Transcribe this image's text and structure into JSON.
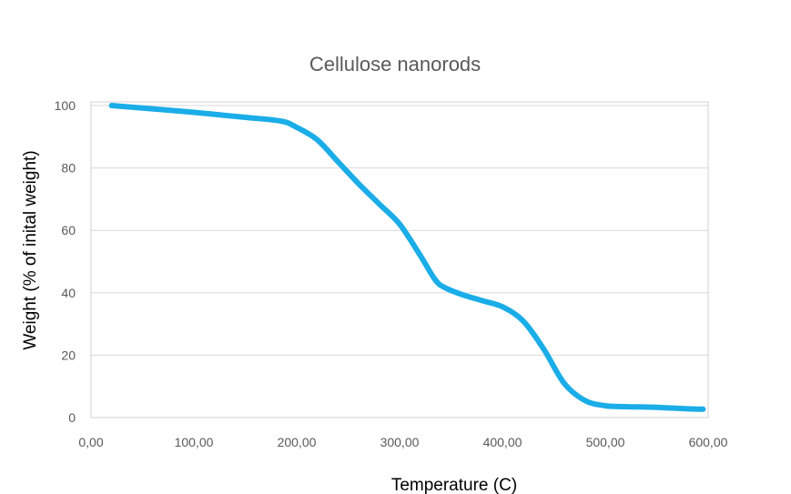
{
  "chart_data": {
    "type": "line",
    "title": "Cellulose nanorods",
    "xlabel": "Temperature (C)",
    "ylabel": "Weight (% of inital weight)",
    "xlim": [
      0,
      600
    ],
    "ylim": [
      0,
      100
    ],
    "x_ticks": [
      0,
      100,
      200,
      300,
      400,
      500,
      600
    ],
    "x_tick_labels": [
      "0,00",
      "100,00",
      "200,00",
      "300,00",
      "400,00",
      "500,00",
      "600,00"
    ],
    "y_ticks": [
      0,
      20,
      40,
      60,
      80,
      100
    ],
    "y_tick_labels": [
      "0",
      "20",
      "40",
      "60",
      "80",
      "100"
    ],
    "grid": "horizontal",
    "legend": "none",
    "line_color": "#1AADE8",
    "series": [
      {
        "x": [
          20,
          50,
          100,
          150,
          185,
          200,
          220,
          240,
          260,
          280,
          300,
          320,
          335,
          345,
          360,
          380,
          400,
          420,
          440,
          460,
          480,
          500,
          520,
          550,
          580,
          595
        ],
        "y": [
          100,
          99.2,
          97.8,
          96.2,
          95,
          93,
          89,
          82,
          75,
          68.5,
          62,
          52,
          44,
          41.5,
          39.5,
          37.5,
          35.5,
          31,
          22,
          11,
          5.5,
          3.8,
          3.5,
          3.3,
          2.8,
          2.7
        ]
      }
    ]
  }
}
